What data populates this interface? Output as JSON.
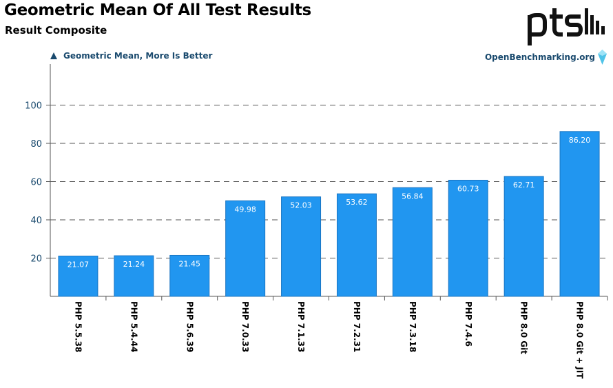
{
  "header": {
    "title": "Geometric Mean Of All Test Results",
    "subtitle": "Result Composite",
    "metric_label": "Geometric Mean, More Is Better",
    "source": "OpenBenchmarking.org",
    "logo_text": "ptsh"
  },
  "colors": {
    "bar": "#2196f0",
    "bar_edge": "#1a75c2",
    "axis_text": "#1a4a6e",
    "grid": "#555555"
  },
  "chart_data": {
    "type": "bar",
    "title": "Geometric Mean Of All Test Results",
    "subtitle": "Result Composite",
    "ylabel": "",
    "xlabel": "",
    "categories": [
      "PHP 5.5.38",
      "PHP 5.4.44",
      "PHP 5.6.39",
      "PHP 7.0.33",
      "PHP 7.1.33",
      "PHP 7.2.31",
      "PHP 7.3.18",
      "PHP 7.4.6",
      "PHP 8.0 Git",
      "PHP 8.0 Git + JIT"
    ],
    "values": [
      21.07,
      21.24,
      21.45,
      49.98,
      52.03,
      53.62,
      56.84,
      60.73,
      62.71,
      86.2
    ],
    "value_labels": [
      "21.07",
      "21.24",
      "21.45",
      "49.98",
      "52.03",
      "53.62",
      "56.84",
      "60.73",
      "62.71",
      "86.20"
    ],
    "yticks": [
      20,
      40,
      60,
      80,
      100
    ],
    "ylim": [
      0,
      110
    ],
    "grid": "horizontal-dashed",
    "legend": "none"
  }
}
